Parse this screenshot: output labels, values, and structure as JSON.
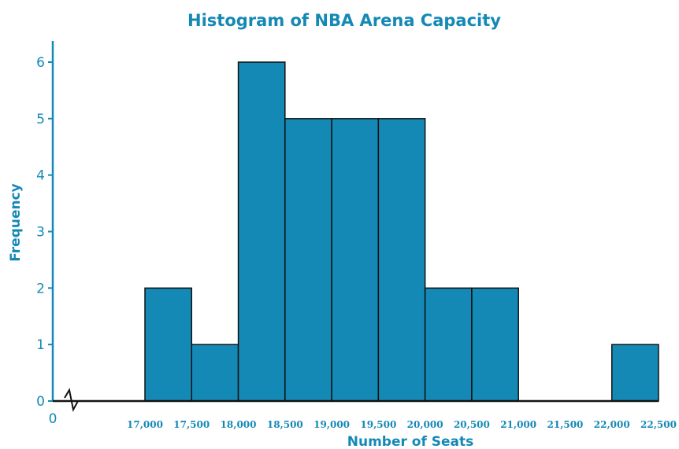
{
  "chart_data": {
    "type": "bar",
    "title": "Histogram of NBA Arena Capacity",
    "xlabel": "Number of Seats",
    "ylabel": "Frequency",
    "origin_label": "0",
    "bin_edges": [
      17000,
      17500,
      18000,
      18500,
      19000,
      19500,
      20000,
      20500,
      21000,
      21500,
      22000,
      22500
    ],
    "x_tick_labels": [
      "17,000",
      "17,500",
      "18,000",
      "18,500",
      "19,000",
      "19,500",
      "20,000",
      "20,500",
      "21,000",
      "21,500",
      "22,000",
      "22,500"
    ],
    "values": [
      2,
      1,
      6,
      5,
      5,
      5,
      2,
      2,
      0,
      0,
      1
    ],
    "ylim": [
      0,
      6
    ],
    "y_ticks": [
      0,
      1,
      2,
      3,
      4,
      5,
      6
    ],
    "axis_break": true,
    "grid": false,
    "colors": {
      "bar": "#1589b6",
      "accent": "#1589b6"
    }
  }
}
